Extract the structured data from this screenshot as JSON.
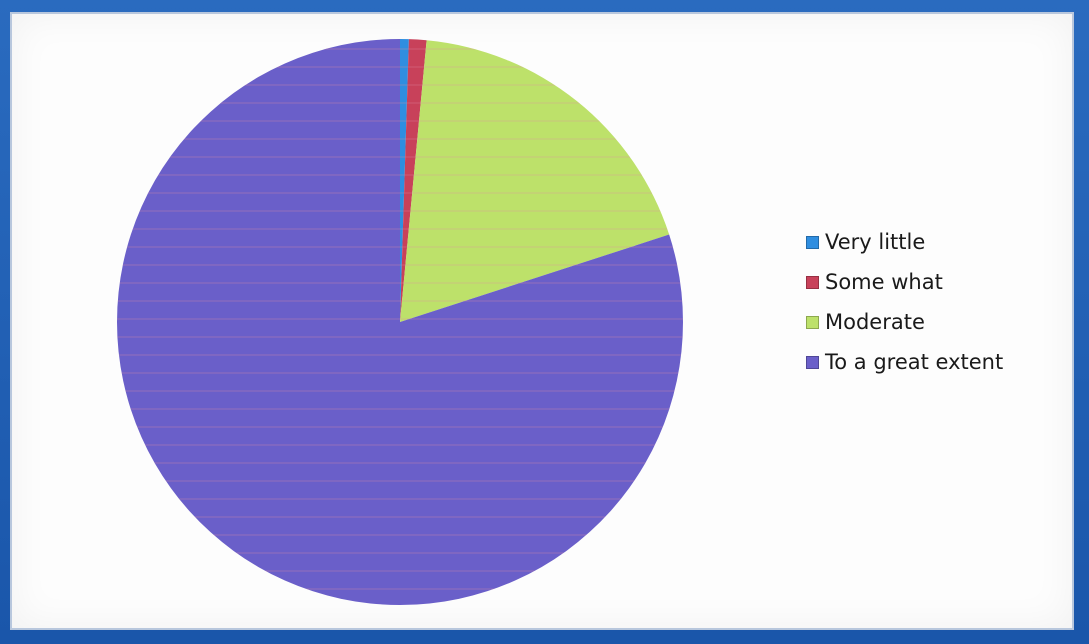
{
  "chart_data": {
    "type": "pie",
    "title": "",
    "legend_position": "right",
    "start_angle_deg": 0,
    "direction": "clockwise",
    "slices": [
      {
        "label": "Very little",
        "value": 0.5,
        "color": "#2f8ee0"
      },
      {
        "label": "Some what",
        "value": 1.0,
        "color": "#c8415a"
      },
      {
        "label": "Moderate",
        "value": 18.5,
        "color": "#bde16a"
      },
      {
        "label": "To a great extent",
        "value": 80.0,
        "color": "#6a5fc9"
      }
    ]
  }
}
